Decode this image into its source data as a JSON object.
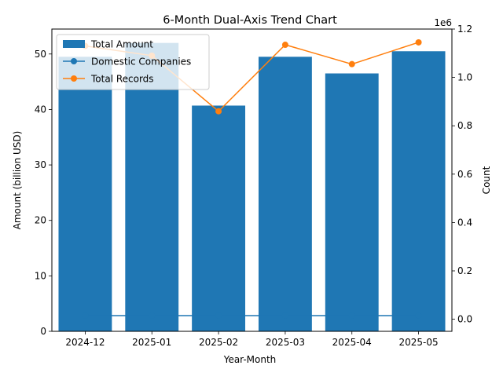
{
  "chart_data": {
    "type": "bar",
    "title": "6-Month Dual-Axis Trend Chart",
    "xlabel": "Year-Month",
    "ylabel": "Amount (billion USD)",
    "ylabel_right": "Count",
    "right_axis_offset_label": "1e6",
    "categories": [
      "2024-12",
      "2025-01",
      "2025-02",
      "2025-03",
      "2025-04",
      "2025-05"
    ],
    "ylim": [
      0,
      54.5
    ],
    "ylim_right": [
      -0.05,
      1.2
    ],
    "yticks": [
      0,
      10,
      20,
      30,
      40,
      50
    ],
    "yticks_right": [
      0.0,
      0.2,
      0.4,
      0.6,
      0.8,
      1.0,
      1.2
    ],
    "legend_position": "top-left",
    "grid": false,
    "series": [
      {
        "name": "Total Amount",
        "type": "bar",
        "axis": "left",
        "color": "#1f77b4",
        "values": [
          49.5,
          52.0,
          40.7,
          49.5,
          46.5,
          50.5
        ]
      },
      {
        "name": "Domestic Companies",
        "type": "line",
        "axis": "right",
        "color": "#1f77b4",
        "values": [
          0.015,
          0.015,
          0.015,
          0.015,
          0.015,
          0.015
        ]
      },
      {
        "name": "Total Records",
        "type": "line",
        "axis": "right",
        "color": "#ff7f0e",
        "values": [
          1.13,
          1.09,
          0.86,
          1.135,
          1.055,
          1.145
        ]
      }
    ]
  }
}
